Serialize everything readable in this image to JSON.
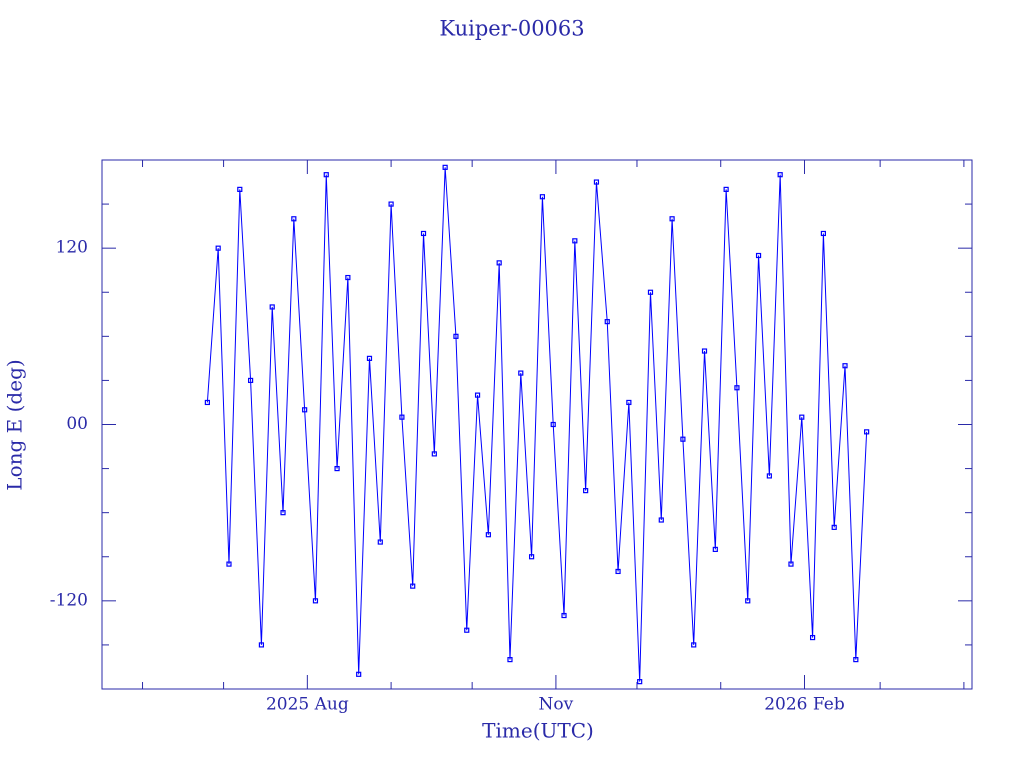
{
  "chart_data": {
    "type": "line",
    "title": "Kuiper-00063",
    "xlabel": "Time(UTC)",
    "ylabel": "Long E (deg)",
    "xlim": [
      "2025-05-17",
      "2026-04-04"
    ],
    "xticks": [
      {
        "value": "2025-08-01",
        "label": "2025 Aug"
      },
      {
        "value": "2025-11-01",
        "label": "Nov"
      },
      {
        "value": "2026-02-01",
        "label": "2026 Feb"
      }
    ],
    "xminorticks": [
      "2025-06-01",
      "2025-07-01",
      "2025-09-01",
      "2025-10-01",
      "2025-12-01",
      "2026-01-01",
      "2026-03-01",
      "2026-04-01"
    ],
    "ylim": [
      -180,
      180
    ],
    "yticks": [
      -120,
      {
        "value": 0,
        "label": "00"
      },
      120
    ],
    "yminorticks": [
      -150,
      -90,
      -60,
      -30,
      30,
      60,
      90,
      150
    ],
    "color": "#0000ff",
    "axis_color": "#2a2aa8",
    "x": [
      "2025-06-25",
      "2025-06-29",
      "2025-07-03",
      "2025-07-07",
      "2025-07-11",
      "2025-07-15",
      "2025-07-19",
      "2025-07-23",
      "2025-07-27",
      "2025-07-31",
      "2025-08-04",
      "2025-08-08",
      "2025-08-12",
      "2025-08-16",
      "2025-08-20",
      "2025-08-24",
      "2025-08-28",
      "2025-09-01",
      "2025-09-05",
      "2025-09-09",
      "2025-09-13",
      "2025-09-17",
      "2025-09-21",
      "2025-09-25",
      "2025-09-29",
      "2025-10-03",
      "2025-10-07",
      "2025-10-11",
      "2025-10-15",
      "2025-10-19",
      "2025-10-23",
      "2025-10-27",
      "2025-10-31",
      "2025-11-04",
      "2025-11-08",
      "2025-11-12",
      "2025-11-16",
      "2025-11-20",
      "2025-11-24",
      "2025-11-28",
      "2025-12-02",
      "2025-12-06",
      "2025-12-10",
      "2025-12-14",
      "2025-12-18",
      "2025-12-22",
      "2025-12-26",
      "2025-12-30",
      "2026-01-03",
      "2026-01-07",
      "2026-01-11",
      "2026-01-15",
      "2026-01-19",
      "2026-01-23",
      "2026-01-27",
      "2026-01-31",
      "2026-02-04",
      "2026-02-08",
      "2026-02-12",
      "2026-02-16",
      "2026-02-20",
      "2026-02-24"
    ],
    "values": [
      15,
      120,
      -95,
      160,
      30,
      -150,
      80,
      -60,
      140,
      10,
      -120,
      170,
      -30,
      100,
      -170,
      45,
      -80,
      150,
      5,
      -110,
      130,
      -20,
      175,
      60,
      -140,
      20,
      -75,
      110,
      -160,
      35,
      -90,
      155,
      0,
      -130,
      125,
      -45,
      165,
      70,
      -100,
      15,
      -175,
      90,
      -65,
      140,
      -10,
      -150,
      50,
      -85,
      160,
      25,
      -120,
      115,
      -35,
      170,
      -95,
      5,
      -145,
      130,
      -70,
      40,
      -160,
      -5
    ]
  }
}
